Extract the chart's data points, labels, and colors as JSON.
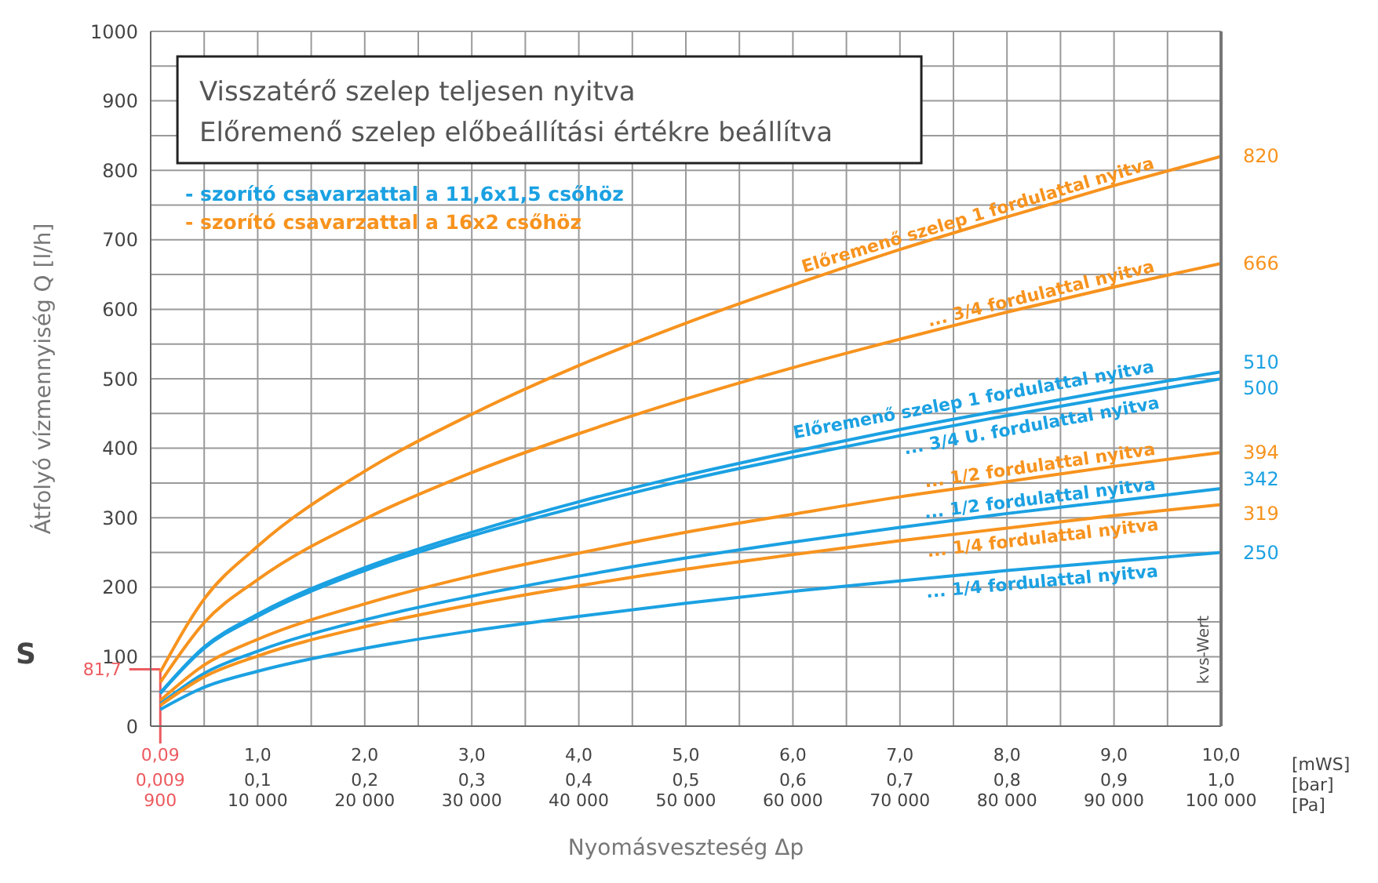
{
  "chart_data": {
    "type": "line",
    "title": "Visszatérő szelep teljesen nyitva",
    "subtitle": "Előremenő szelep előbeállítási értékre beállítva",
    "xlabel": "Nyomásveszteség Δp",
    "ylabel": "Átfolyó vízmennyiség Q [l/h]",
    "annotations": [
      "- szorító csavarzattal a 11,6x1,5 csőhöz",
      "- szorító csavarzattal a 16x2 csőhöz",
      "[mWS]",
      "[bar]",
      "[Pa]",
      "kvs-Wert",
      "S",
      "900",
      "10 000",
      "20 000",
      "30 000",
      "40 000",
      "50 000",
      "60 000",
      "70 000",
      "80 000",
      "90 000",
      "100 000"
    ],
    "x": [
      0.09,
      0.5,
      1,
      2,
      3,
      4,
      5,
      6,
      7,
      8,
      9,
      10
    ],
    "series": [
      {
        "name": "Előremenő szelep 1 fordulattal nyitva",
        "color": "#f7931e",
        "values": [
          78,
          183,
          259,
          367,
          449,
          519,
          580,
          635,
          686,
          733,
          778,
          820
        ],
        "value_labels": [
          null,
          null,
          null,
          null,
          null,
          null,
          null,
          null,
          null,
          null,
          null,
          "820"
        ]
      },
      {
        "name": "... 3/4 fordulattal nyitva",
        "color": "#f7931e",
        "values": [
          63,
          149,
          211,
          298,
          365,
          421,
          471,
          516,
          557,
          596,
          632,
          666
        ],
        "value_labels": [
          null,
          null,
          null,
          null,
          null,
          null,
          null,
          null,
          null,
          null,
          null,
          "666"
        ]
      },
      {
        "name": "Előremenő szelep 1 fordulattal nyitva",
        "color": "#1ba1e2",
        "values": [
          48,
          114,
          161,
          228,
          279,
          323,
          361,
          395,
          427,
          456,
          484,
          510
        ],
        "value_labels": [
          null,
          null,
          null,
          null,
          null,
          null,
          null,
          null,
          null,
          null,
          null,
          "510"
        ]
      },
      {
        "name": "... 3/4 U. fordulattal nyitva",
        "color": "#1ba1e2",
        "values": [
          47,
          112,
          158,
          224,
          274,
          316,
          354,
          387,
          418,
          447,
          474,
          500
        ],
        "value_labels": [
          null,
          null,
          null,
          null,
          null,
          null,
          null,
          null,
          null,
          null,
          null,
          "500"
        ]
      },
      {
        "name": "... 1/2 fordulattal nyitva",
        "color": "#f7931e",
        "values": [
          37,
          88,
          125,
          176,
          216,
          249,
          279,
          305,
          330,
          352,
          374,
          394
        ],
        "value_labels": [
          null,
          null,
          null,
          null,
          null,
          null,
          null,
          null,
          null,
          null,
          null,
          "394"
        ]
      },
      {
        "name": "... 1/2 fordulattal nyitva",
        "color": "#1ba1e2",
        "values": [
          32,
          76,
          108,
          153,
          187,
          216,
          242,
          265,
          286,
          306,
          324,
          342
        ],
        "value_labels": [
          null,
          null,
          null,
          null,
          null,
          null,
          null,
          null,
          null,
          null,
          null,
          "342"
        ]
      },
      {
        "name": "... 1/4 fordulattal nyitva",
        "color": "#f7931e",
        "values": [
          30,
          71,
          101,
          143,
          175,
          202,
          226,
          247,
          267,
          285,
          303,
          319
        ],
        "value_labels": [
          null,
          null,
          null,
          null,
          null,
          null,
          null,
          null,
          null,
          null,
          null,
          "319"
        ]
      },
      {
        "name": "... 1/4 fordulattal nyitva",
        "color": "#1ba1e2",
        "values": [
          24,
          56,
          79,
          112,
          137,
          158,
          177,
          194,
          209,
          224,
          237,
          250
        ],
        "value_labels": [
          null,
          null,
          null,
          null,
          null,
          null,
          null,
          null,
          null,
          null,
          null,
          "250"
        ]
      }
    ],
    "xlim": [
      0,
      10
    ],
    "xticks": [
      {
        "value": 0.09,
        "label": "0,09"
      },
      {
        "value": 0.5,
        "label": null
      },
      {
        "value": 1,
        "label": "1,0"
      },
      {
        "value": 1.5,
        "label": null
      },
      {
        "value": 2,
        "label": "2,0"
      },
      {
        "value": 2.5,
        "label": null
      },
      {
        "value": 3,
        "label": "3,0"
      },
      {
        "value": 3.5,
        "label": null
      },
      {
        "value": 4,
        "label": "4,0"
      },
      {
        "value": 4.5,
        "label": null
      },
      {
        "value": 5,
        "label": "5,0"
      },
      {
        "value": 5.5,
        "label": null
      },
      {
        "value": 6,
        "label": "6,0"
      },
      {
        "value": 6.5,
        "label": null
      },
      {
        "value": 7,
        "label": "7,0"
      },
      {
        "value": 7.5,
        "label": null
      },
      {
        "value": 8,
        "label": "8,0"
      },
      {
        "value": 8.5,
        "label": null
      },
      {
        "value": 9,
        "label": "9,0"
      },
      {
        "value": 9.5,
        "label": null
      },
      {
        "value": 10,
        "label": "10,0"
      }
    ],
    "x2lim": [
      0,
      1
    ],
    "x2ticks": [
      {
        "value": 0.009,
        "label": "0,009"
      },
      {
        "value": 0.1,
        "label": "0,1"
      },
      {
        "value": 0.2,
        "label": "0,2"
      },
      {
        "value": 0.3,
        "label": "0,3"
      },
      {
        "value": 0.4,
        "label": "0,4"
      },
      {
        "value": 0.5,
        "label": "0,5"
      },
      {
        "value": 0.6,
        "label": "0,6"
      },
      {
        "value": 0.7,
        "label": "0,7"
      },
      {
        "value": 0.8,
        "label": "0,8"
      },
      {
        "value": 0.9,
        "label": "0,9"
      },
      {
        "value": 1,
        "label": "1,0"
      }
    ],
    "ylim": [
      0,
      1000
    ],
    "yticks": [
      0,
      {
        "value": 50,
        "label": null
      },
      100,
      {
        "value": 150,
        "label": null
      },
      200,
      {
        "value": 250,
        "label": null
      },
      300,
      {
        "value": 350,
        "label": null
      },
      400,
      {
        "value": 450,
        "label": null
      },
      500,
      {
        "value": 550,
        "label": null
      },
      600,
      {
        "value": 650,
        "label": null
      },
      700,
      {
        "value": 750,
        "label": null
      },
      800,
      {
        "value": 850,
        "label": null
      },
      900,
      {
        "value": 950,
        "label": null
      },
      1000
    ],
    "ref_lines": [
      {
        "axis": "y",
        "value": 81.7,
        "label": "81,7",
        "color": "#ec5a5f"
      },
      {
        "axis": "x",
        "value": 0.09,
        "label": null,
        "color": "#ec5a5f"
      }
    ],
    "grid": true,
    "marker": "none",
    "line_style": "solid"
  }
}
